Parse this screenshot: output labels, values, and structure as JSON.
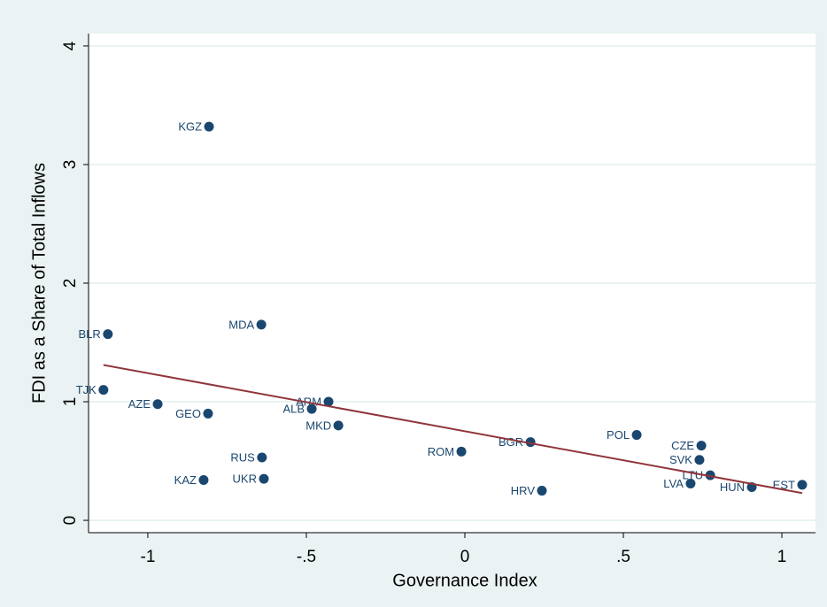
{
  "chart_data": {
    "type": "scatter",
    "xlabel": "Governance Index",
    "ylabel": "FDI as a Share of Total Inflows",
    "xlim": [
      -1.187,
      1.106
    ],
    "ylim": [
      -0.104,
      4.104
    ],
    "xticks": [
      {
        "value": -1,
        "label": "-1"
      },
      {
        "value": -0.5,
        "label": "-.5"
      },
      0,
      {
        "value": 0.5,
        "label": ".5"
      },
      1
    ],
    "yticks": [
      0,
      1,
      2,
      3,
      4
    ],
    "grid": true,
    "series": [
      {
        "color": "#1a476f",
        "labels": [
          "KGZ",
          "MDA",
          "BLR",
          "TJK",
          "AZE",
          "GEO",
          "ARM",
          "ALB",
          "MKD",
          "RUS",
          "KAZ",
          "UKR",
          "ROM",
          "BGR",
          "HRV",
          "POL",
          "CZE",
          "SVK",
          "LTU",
          "LVA",
          "HUN",
          "EST"
        ],
        "x": [
          -0.807,
          -0.642,
          -1.126,
          -1.14,
          -0.969,
          -0.81,
          -0.43,
          -0.483,
          -0.399,
          -0.64,
          -0.824,
          -0.634,
          -0.011,
          0.207,
          0.243,
          0.542,
          0.746,
          0.74,
          0.774,
          0.712,
          0.905,
          1.064
        ],
        "values": [
          3.32,
          1.65,
          1.57,
          1.1,
          0.98,
          0.9,
          1.0,
          0.94,
          0.8,
          0.53,
          0.34,
          0.35,
          0.58,
          0.66,
          0.25,
          0.72,
          0.63,
          0.51,
          0.38,
          0.31,
          0.28,
          0.3
        ]
      }
    ],
    "fit": {
      "color": "#90353b",
      "x": [
        -1.14,
        1.064
      ],
      "values": [
        1.31,
        0.23
      ]
    }
  }
}
